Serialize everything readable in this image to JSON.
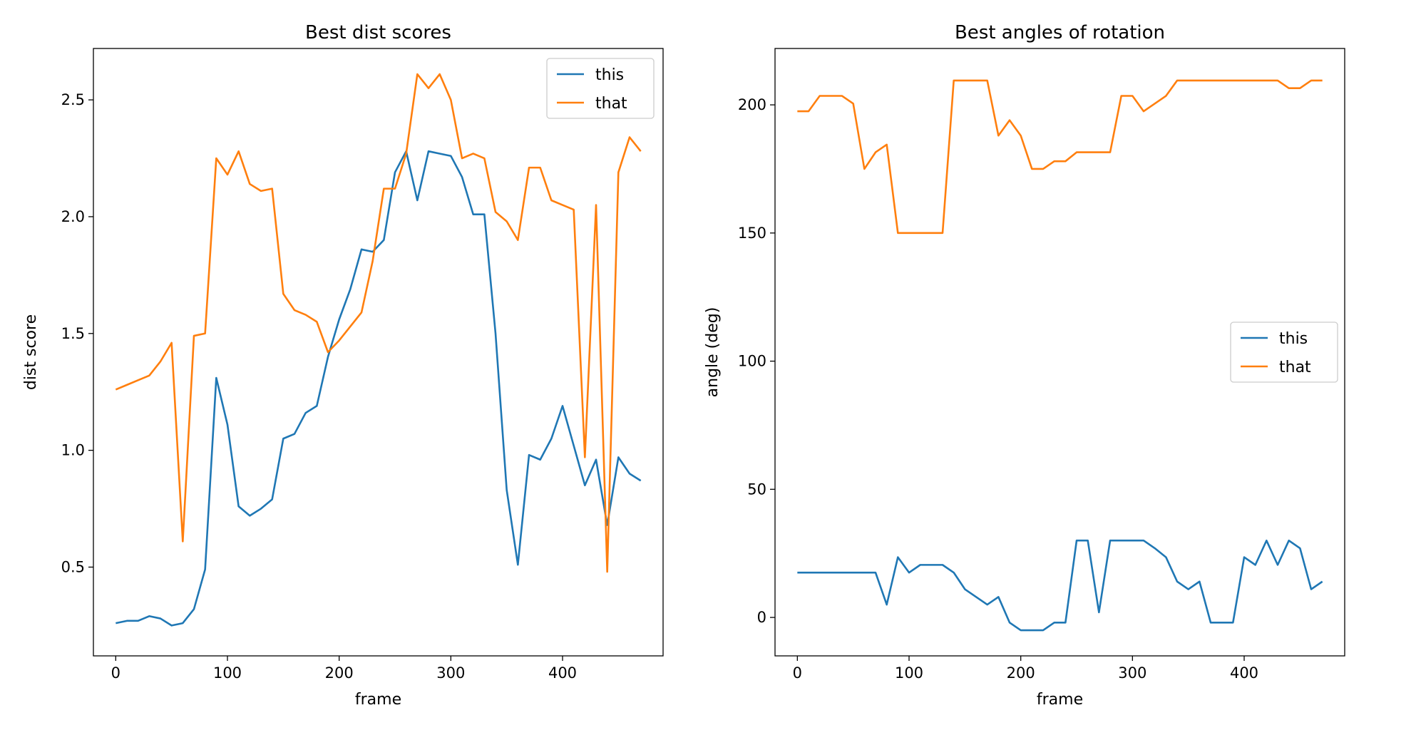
{
  "chart_data": [
    {
      "type": "line",
      "title": "Best dist scores",
      "xlabel": "frame",
      "ylabel": "dist score",
      "xlim": [
        -20,
        490
      ],
      "ylim": [
        0.12,
        2.72
      ],
      "xticks": [
        0,
        100,
        200,
        300,
        400
      ],
      "yticks": [
        0.5,
        1.0,
        1.5,
        2.0,
        2.5
      ],
      "ytick_labels": [
        "0.5",
        "1.0",
        "1.5",
        "2.0",
        "2.5"
      ],
      "grid": false,
      "legend_position": "top-right",
      "x": [
        0,
        10,
        20,
        30,
        40,
        50,
        60,
        70,
        80,
        90,
        100,
        110,
        120,
        130,
        140,
        150,
        160,
        170,
        180,
        190,
        200,
        210,
        220,
        230,
        240,
        250,
        260,
        270,
        280,
        290,
        300,
        310,
        320,
        330,
        340,
        350,
        360,
        370,
        380,
        390,
        400,
        410,
        420,
        430,
        440,
        450,
        460,
        470
      ],
      "series": [
        {
          "name": "this",
          "color": "#1f77b4",
          "values": [
            0.26,
            0.27,
            0.27,
            0.29,
            0.28,
            0.25,
            0.26,
            0.32,
            0.49,
            1.31,
            1.11,
            0.76,
            0.72,
            0.75,
            0.79,
            1.05,
            1.07,
            1.16,
            1.19,
            1.4,
            1.56,
            1.69,
            1.86,
            1.85,
            1.9,
            2.19,
            2.28,
            2.07,
            2.28,
            2.27,
            2.26,
            2.17,
            2.01,
            2.01,
            1.5,
            0.83,
            0.51,
            0.98,
            0.96,
            1.05,
            1.19,
            1.02,
            0.85,
            0.96,
            0.68,
            0.97,
            0.9,
            0.87
          ]
        },
        {
          "name": "that",
          "color": "#ff7f0e",
          "values": [
            1.26,
            1.28,
            1.3,
            1.32,
            1.38,
            1.46,
            0.61,
            1.49,
            1.5,
            2.25,
            2.18,
            2.28,
            2.14,
            2.11,
            2.12,
            1.67,
            1.6,
            1.58,
            1.55,
            1.42,
            1.47,
            1.53,
            1.59,
            1.81,
            2.12,
            2.12,
            2.27,
            2.61,
            2.55,
            2.61,
            2.5,
            2.25,
            2.27,
            2.25,
            2.02,
            1.98,
            1.9,
            2.21,
            2.21,
            2.07,
            2.05,
            2.03,
            0.97,
            2.05,
            0.48,
            2.19,
            2.34,
            2.28
          ]
        }
      ]
    },
    {
      "type": "line",
      "title": "Best angles of rotation",
      "xlabel": "frame",
      "ylabel": "angle (deg)",
      "xlim": [
        -20,
        490
      ],
      "ylim": [
        -15,
        222
      ],
      "xticks": [
        0,
        100,
        200,
        300,
        400
      ],
      "yticks": [
        0,
        50,
        100,
        150,
        200
      ],
      "ytick_labels": [
        "0",
        "50",
        "100",
        "150",
        "200"
      ],
      "grid": false,
      "legend_position": "center-right",
      "x": [
        0,
        10,
        20,
        30,
        40,
        50,
        60,
        70,
        80,
        90,
        100,
        110,
        120,
        130,
        140,
        150,
        160,
        170,
        180,
        190,
        200,
        210,
        220,
        230,
        240,
        250,
        260,
        270,
        280,
        290,
        300,
        310,
        320,
        330,
        340,
        350,
        360,
        370,
        380,
        390,
        400,
        410,
        420,
        430,
        440,
        450,
        460,
        470
      ],
      "series": [
        {
          "name": "this",
          "color": "#1f77b4",
          "values": [
            17.5,
            17.5,
            17.5,
            17.5,
            17.5,
            17.5,
            17.5,
            17.5,
            5,
            23.5,
            17.5,
            20.5,
            20.5,
            20.5,
            17.5,
            11,
            8,
            5,
            8,
            -2,
            -5,
            -5,
            -5,
            -2,
            -2,
            30,
            30,
            2,
            30,
            30,
            30,
            30,
            27,
            23.5,
            14,
            11,
            14,
            -2,
            -2,
            -2,
            23.5,
            20.5,
            30,
            20.5,
            30,
            27,
            11,
            14
          ]
        },
        {
          "name": "that",
          "color": "#ff7f0e",
          "values": [
            197.5,
            197.5,
            203.5,
            203.5,
            203.5,
            200.5,
            175,
            181.5,
            184.5,
            150,
            150,
            150,
            150,
            150,
            209.5,
            209.5,
            209.5,
            209.5,
            188,
            194,
            188,
            175,
            175,
            178,
            178,
            181.5,
            181.5,
            181.5,
            181.5,
            203.5,
            203.5,
            197.5,
            200.5,
            203.5,
            209.5,
            209.5,
            209.5,
            209.5,
            209.5,
            209.5,
            209.5,
            209.5,
            209.5,
            209.5,
            206.5,
            206.5,
            209.5,
            209.5
          ]
        }
      ]
    }
  ]
}
